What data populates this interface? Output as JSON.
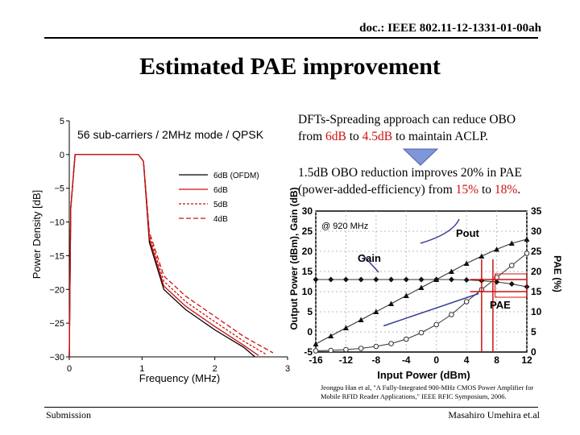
{
  "header": {
    "doc_id": "doc.: IEEE 802.11-12-1331-01-00ah"
  },
  "title": "Estimated PAE improvement",
  "footer": {
    "left": "Submission",
    "right": "Masahiro Umehira et.al"
  },
  "text1": {
    "line1": "DFTs-Spreading approach can reduce OBO",
    "pre": "from ",
    "v1": "6dB",
    "mid": " to ",
    "v2": "4.5dB",
    "post": " to maintain ACLP."
  },
  "text2": {
    "line1": "1.5dB OBO reduction improves 20% in PAE",
    "pre": "(power-added-efficiency) from ",
    "v1": "15%",
    "mid": " to ",
    "v2": "18%",
    "post": "."
  },
  "colors": {
    "red": "#cc1111",
    "arrow": "#7f96d8"
  },
  "chart_data": [
    {
      "type": "line",
      "annotation": "56 sub-carriers / 2MHz mode / QPSK",
      "xlabel": "Frequency (MHz)",
      "ylabel": "Power Density [dB]",
      "xticks": [
        "0",
        "1",
        "2",
        "3"
      ],
      "yticks": [
        "5",
        "0",
        "−5",
        "−10",
        "−15",
        "−20",
        "−25",
        "−30"
      ],
      "xlim": [
        0,
        3
      ],
      "ylim": [
        -30,
        5
      ],
      "legend": [
        "6dB (OFDM)",
        "6dB",
        "5dB",
        "4dB"
      ],
      "legend_position": "center-right",
      "series": [
        {
          "name": "6dB (OFDM)",
          "color": "#000000",
          "dash": "",
          "x": [
            0,
            0.02,
            0.08,
            0.95,
            1.02,
            1.1,
            1.3,
            1.6,
            2.0,
            2.4,
            2.55
          ],
          "y": [
            -30,
            -8,
            0,
            0,
            -1,
            -13,
            -20,
            -23,
            -26,
            -28.6,
            -30
          ]
        },
        {
          "name": "6dB",
          "color": "#cc1111",
          "dash": "",
          "x": [
            0,
            0.02,
            0.08,
            0.95,
            1.02,
            1.1,
            1.3,
            1.6,
            2.0,
            2.4,
            2.6
          ],
          "y": [
            -30,
            -8,
            0,
            0,
            -1,
            -12.5,
            -19.5,
            -22.5,
            -25.5,
            -28.3,
            -29.8
          ]
        },
        {
          "name": "5dB",
          "color": "#cc1111",
          "dash": "3 2",
          "x": [
            0,
            0.02,
            0.08,
            0.95,
            1.02,
            1.1,
            1.3,
            1.6,
            2.0,
            2.4,
            2.7
          ],
          "y": [
            -30,
            -8,
            0,
            0,
            -1,
            -12,
            -18.8,
            -21.8,
            -24.8,
            -27.7,
            -29.6
          ]
        },
        {
          "name": "4dB",
          "color": "#cc1111",
          "dash": "6 3",
          "x": [
            0,
            0.02,
            0.08,
            0.95,
            1.02,
            1.1,
            1.3,
            1.6,
            2.0,
            2.4,
            2.8
          ],
          "y": [
            -30,
            -8,
            0,
            0,
            -1,
            -11.5,
            -18,
            -21,
            -24,
            -27,
            -29.4
          ]
        }
      ]
    },
    {
      "type": "line",
      "annotation": "@ 920 MHz",
      "xlabel": "Input Power (dBm)",
      "ylabel_left": "Output Power (dBm), Gain (dB)",
      "ylabel_right": "PAE (%)",
      "xticks": [
        "-16",
        "-12",
        "-8",
        "-4",
        "0",
        "4",
        "8",
        "12"
      ],
      "yticks_left": [
        "30",
        "25",
        "20",
        "15",
        "10",
        "5",
        "0",
        "-5"
      ],
      "yticks_right": [
        "35",
        "30",
        "25",
        "20",
        "15",
        "10",
        "5",
        "0"
      ],
      "xlim": [
        -16,
        12
      ],
      "ylim_left": [
        -5,
        30
      ],
      "ylim_right": [
        0,
        35
      ],
      "labels": [
        "Pout",
        "Gain",
        "PAE"
      ],
      "series": [
        {
          "name": "Pout",
          "axis": "left",
          "marker": "triangle",
          "x": [
            -16,
            -14,
            -12,
            -10,
            -8,
            -6,
            -4,
            -2,
            0,
            2,
            4,
            6,
            8,
            10,
            12
          ],
          "y": [
            -3,
            -1,
            1,
            3,
            5,
            7,
            9,
            11,
            13,
            15,
            17,
            18.8,
            20.5,
            22,
            23
          ]
        },
        {
          "name": "Gain",
          "axis": "left",
          "marker": "diamond",
          "x": [
            -16,
            -14,
            -12,
            -10,
            -8,
            -6,
            -4,
            -2,
            0,
            2,
            4,
            6,
            8,
            10,
            12
          ],
          "y": [
            13,
            13,
            13,
            13,
            13,
            13,
            13,
            13,
            13,
            13,
            12.9,
            12.7,
            12.4,
            11.9,
            11.2
          ]
        },
        {
          "name": "PAE",
          "axis": "right",
          "marker": "circle",
          "x": [
            -16,
            -14,
            -12,
            -10,
            -8,
            -6,
            -4,
            -2,
            0,
            2,
            4,
            6,
            8,
            10,
            12
          ],
          "y": [
            0.3,
            0.4,
            0.6,
            0.9,
            1.4,
            2.1,
            3.2,
            4.8,
            6.8,
            9.3,
            12.5,
            15.5,
            18.5,
            21.5,
            24.5
          ]
        }
      ]
    }
  ]
}
